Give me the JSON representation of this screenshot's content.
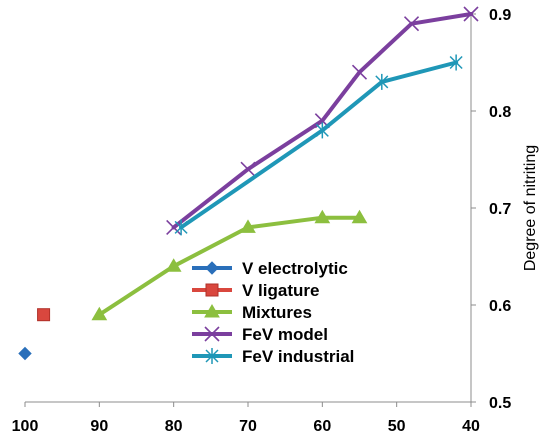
{
  "chart_data": {
    "type": "line",
    "title": "",
    "xlabel": "",
    "ylabel": "Degree of nitriting",
    "x_reversed": true,
    "xlim": [
      100,
      40
    ],
    "ylim": [
      0.5,
      0.9
    ],
    "x_ticks": [
      100,
      90,
      80,
      70,
      60,
      50,
      40
    ],
    "y_ticks": [
      0.5,
      0.6,
      0.7,
      0.8,
      0.9
    ],
    "x_tick_labels": [
      "100",
      "90",
      "80",
      "70",
      "60",
      "50",
      "40"
    ],
    "y_tick_labels": [
      "0.5",
      "0.6",
      "0.7",
      "0.8",
      "0.9"
    ],
    "y_axis_side": "right",
    "grid": false,
    "legend_placement": "bottom-center",
    "series": [
      {
        "name": "V electrolytic",
        "color": "#2a6fba",
        "marker": "diamond",
        "points": [
          [
            100,
            0.55
          ]
        ]
      },
      {
        "name": "V ligature",
        "color": "#d9473e",
        "marker": "square",
        "points": [
          [
            97.5,
            0.59
          ]
        ]
      },
      {
        "name": "Mixtures",
        "color": "#8cbf3f",
        "marker": "triangle",
        "points": [
          [
            90,
            0.59
          ],
          [
            80,
            0.64
          ],
          [
            70,
            0.68
          ],
          [
            60,
            0.69
          ],
          [
            55,
            0.69
          ]
        ]
      },
      {
        "name": "FeV model",
        "color": "#7b3f9e",
        "marker": "x",
        "points": [
          [
            80,
            0.68
          ],
          [
            70,
            0.74
          ],
          [
            60,
            0.79
          ],
          [
            55,
            0.84
          ],
          [
            48,
            0.89
          ],
          [
            40,
            0.9
          ]
        ]
      },
      {
        "name": "FeV industrial",
        "color": "#1f97b7",
        "marker": "asterisk",
        "points": [
          [
            79,
            0.68
          ],
          [
            60,
            0.78
          ],
          [
            52,
            0.83
          ],
          [
            42,
            0.85
          ]
        ]
      }
    ]
  }
}
